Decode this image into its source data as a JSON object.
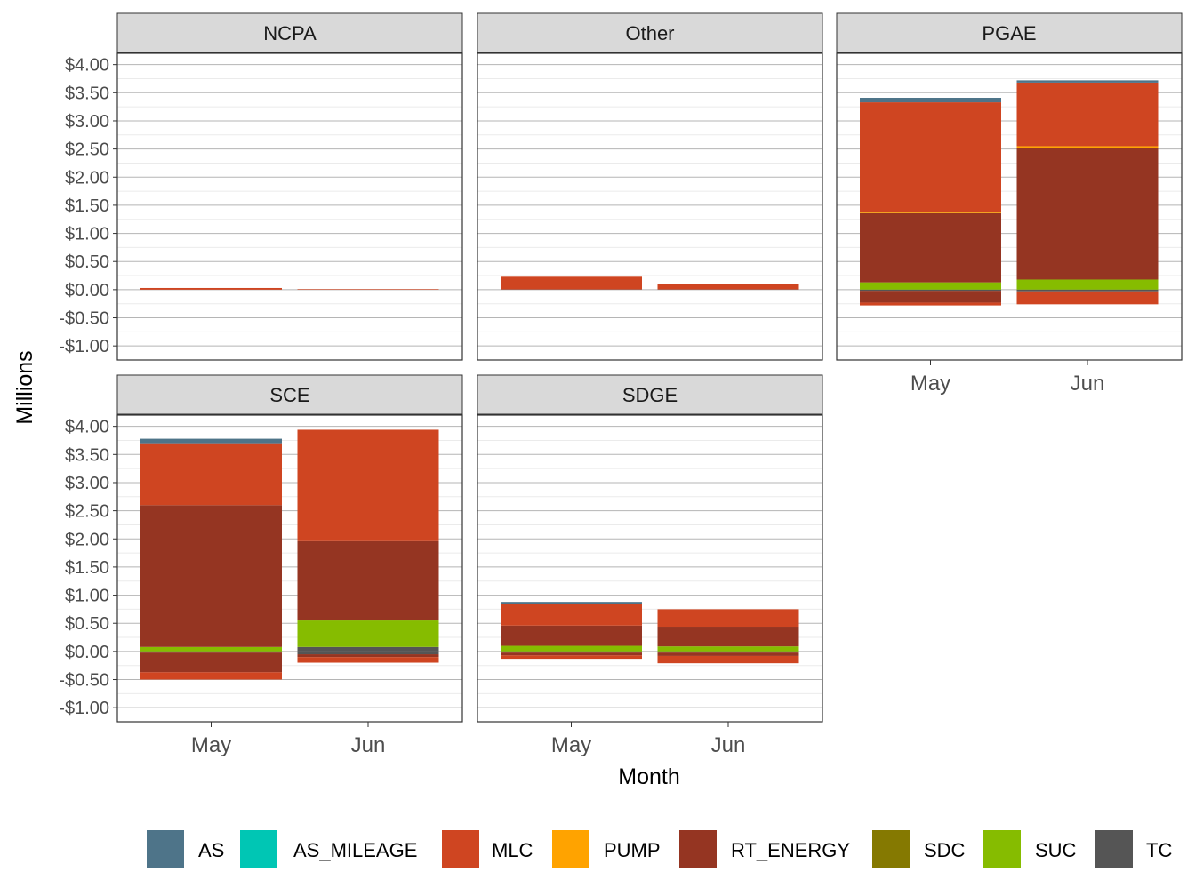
{
  "chart_data": {
    "type": "bar",
    "stacked": true,
    "faceted": true,
    "xlabel": "Month",
    "ylabel": "Millions",
    "ylim": [
      -1.25,
      4.2
    ],
    "y_ticks": [
      4,
      3.5,
      3,
      2.5,
      2,
      1.5,
      1,
      0.5,
      0,
      -0.5,
      -1
    ],
    "y_tick_labels": [
      "$4.00",
      "$3.50",
      "$3.00",
      "$2.50",
      "$2.00",
      "$1.50",
      "$1.00",
      "$0.50",
      "$0.00",
      "-$0.50",
      "-$1.00"
    ],
    "categories": [
      "May",
      "Jun"
    ],
    "legend_position": "bottom",
    "legend": [
      {
        "name": "AS",
        "color": "#4E7489"
      },
      {
        "name": "AS_MILEAGE",
        "color": "#00C6B4"
      },
      {
        "name": "MLC",
        "color": "#CF4521"
      },
      {
        "name": "PUMP",
        "color": "#FFA300"
      },
      {
        "name": "RT_ENERGY",
        "color": "#953522"
      },
      {
        "name": "SDC",
        "color": "#857901"
      },
      {
        "name": "SUC",
        "color": "#86BC00"
      },
      {
        "name": "TC",
        "color": "#555555"
      }
    ],
    "panels": [
      {
        "name": "NCPA",
        "bars": [
          {
            "month": "May",
            "positive": [
              {
                "series": "MLC",
                "value": 0.03
              }
            ],
            "negative": []
          },
          {
            "month": "Jun",
            "positive": [
              {
                "series": "MLC",
                "value": 0.01
              }
            ],
            "negative": []
          }
        ]
      },
      {
        "name": "Other",
        "bars": [
          {
            "month": "May",
            "positive": [
              {
                "series": "RT_ENERGY",
                "value": 0.01
              },
              {
                "series": "MLC",
                "value": 0.22
              }
            ],
            "negative": []
          },
          {
            "month": "Jun",
            "positive": [
              {
                "series": "RT_ENERGY",
                "value": 0.01
              },
              {
                "series": "MLC",
                "value": 0.09
              }
            ],
            "negative": []
          }
        ]
      },
      {
        "name": "PGAE",
        "bars": [
          {
            "month": "May",
            "positive": [
              {
                "series": "SUC",
                "value": 0.13
              },
              {
                "series": "RT_ENERGY",
                "value": 1.23
              },
              {
                "series": "PUMP",
                "value": 0.02
              },
              {
                "series": "MLC",
                "value": 1.95
              },
              {
                "series": "AS",
                "value": 0.08
              }
            ],
            "negative": [
              {
                "series": "TC",
                "value": -0.02
              },
              {
                "series": "RT_ENERGY",
                "value": -0.21
              },
              {
                "series": "MLC",
                "value": -0.05
              }
            ]
          },
          {
            "month": "Jun",
            "positive": [
              {
                "series": "SUC",
                "value": 0.18
              },
              {
                "series": "RT_ENERGY",
                "value": 2.33
              },
              {
                "series": "PUMP",
                "value": 0.04
              },
              {
                "series": "MLC",
                "value": 1.13
              },
              {
                "series": "AS",
                "value": 0.04
              }
            ],
            "negative": [
              {
                "series": "TC",
                "value": -0.03
              },
              {
                "series": "MLC",
                "value": -0.23
              }
            ]
          }
        ]
      },
      {
        "name": "SCE",
        "bars": [
          {
            "month": "May",
            "positive": [
              {
                "series": "SUC",
                "value": 0.08
              },
              {
                "series": "RT_ENERGY",
                "value": 2.52
              },
              {
                "series": "MLC",
                "value": 1.1
              },
              {
                "series": "AS",
                "value": 0.08
              }
            ],
            "negative": [
              {
                "series": "TC",
                "value": -0.02
              },
              {
                "series": "RT_ENERGY",
                "value": -0.35
              },
              {
                "series": "MLC",
                "value": -0.13
              }
            ]
          },
          {
            "month": "Jun",
            "positive": [
              {
                "series": "TC",
                "value": 0.08
              },
              {
                "series": "SUC",
                "value": 0.47
              },
              {
                "series": "RT_ENERGY",
                "value": 1.41
              },
              {
                "series": "MLC",
                "value": 1.98
              }
            ],
            "negative": [
              {
                "series": "TC",
                "value": -0.05
              },
              {
                "series": "RT_ENERGY",
                "value": -0.05
              },
              {
                "series": "MLC",
                "value": -0.1
              }
            ]
          }
        ]
      },
      {
        "name": "SDGE",
        "bars": [
          {
            "month": "May",
            "positive": [
              {
                "series": "SUC",
                "value": 0.1
              },
              {
                "series": "RT_ENERGY",
                "value": 0.36
              },
              {
                "series": "MLC",
                "value": 0.38
              },
              {
                "series": "AS",
                "value": 0.04
              }
            ],
            "negative": [
              {
                "series": "TC",
                "value": -0.02
              },
              {
                "series": "RT_ENERGY",
                "value": -0.05
              },
              {
                "series": "MLC",
                "value": -0.06
              }
            ]
          },
          {
            "month": "Jun",
            "positive": [
              {
                "series": "SUC",
                "value": 0.09
              },
              {
                "series": "RT_ENERGY",
                "value": 0.35
              },
              {
                "series": "MLC",
                "value": 0.31
              }
            ],
            "negative": [
              {
                "series": "TC",
                "value": -0.02
              },
              {
                "series": "RT_ENERGY",
                "value": -0.06
              },
              {
                "series": "MLC",
                "value": -0.13
              }
            ]
          }
        ]
      }
    ]
  }
}
